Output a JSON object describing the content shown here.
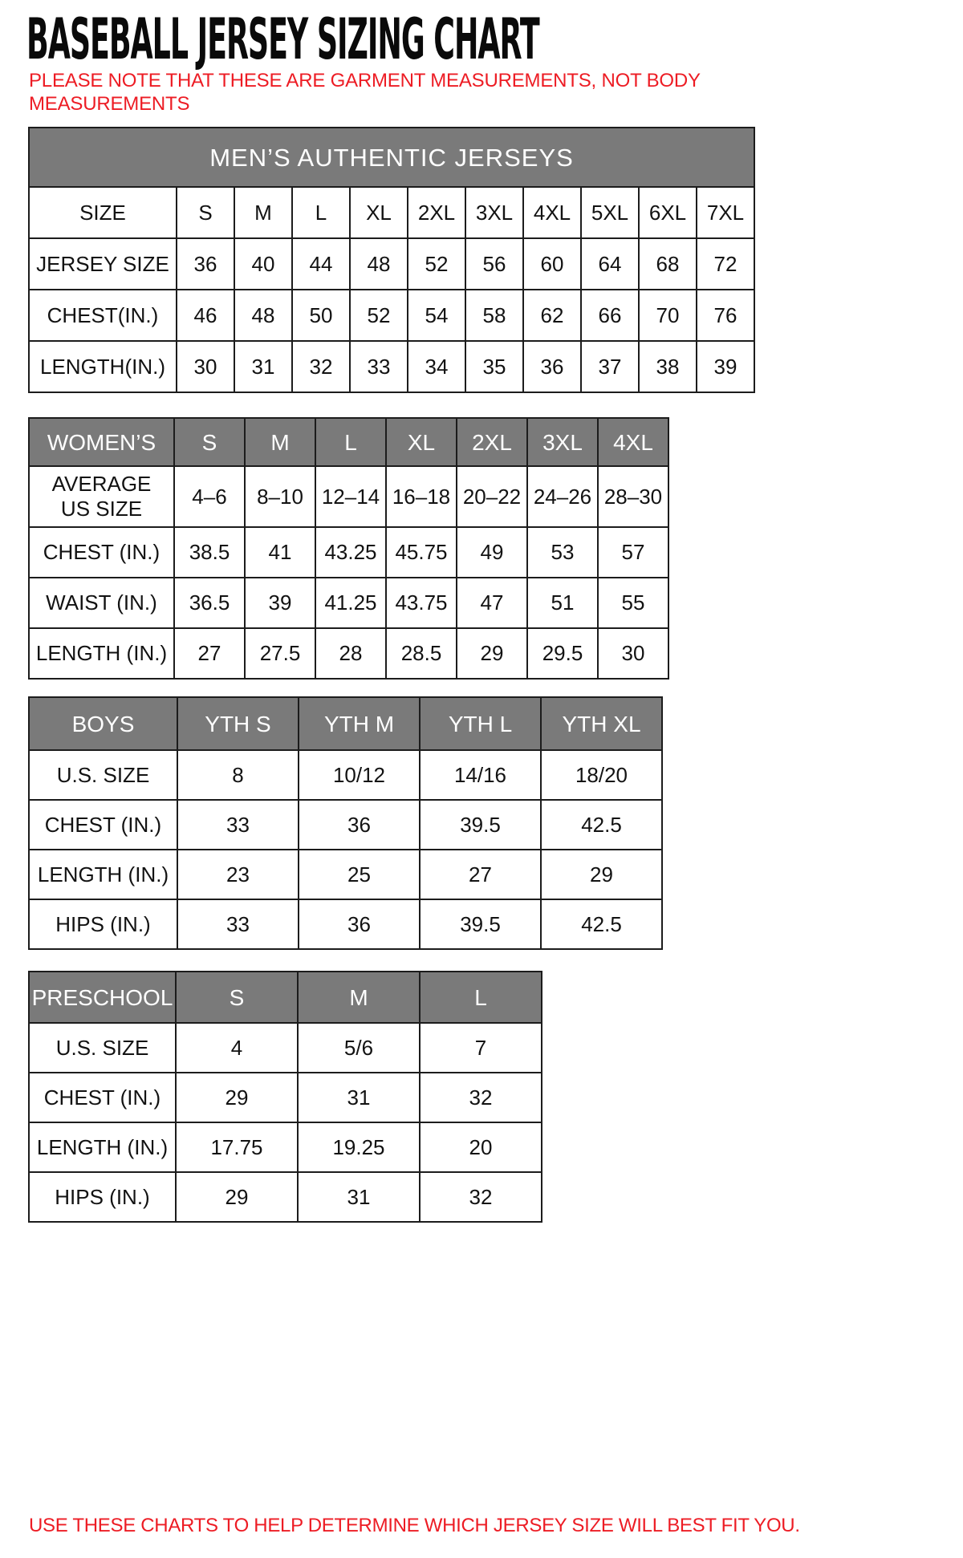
{
  "page": {
    "title": "BASEBALL JERSEY SIZING CHART",
    "note": "PLEASE NOTE THAT THESE ARE GARMENT MEASUREMENTS, NOT BODY\nMEASUREMENTS",
    "footer": "USE THESE CHARTS TO HELP DETERMINE WHICH JERSEY SIZE WILL BEST FIT YOU.",
    "colors": {
      "accent_red": "#ed1c24",
      "header_gray": "#7a7a7a",
      "border_black": "#1c1c1c",
      "text_black": "#121212"
    }
  },
  "tables": {
    "mens": {
      "title": "MEN’S AUTHENTIC JERSEYS",
      "rows": [
        {
          "label": "SIZE",
          "values": [
            "S",
            "M",
            "L",
            "XL",
            "2XL",
            "3XL",
            "4XL",
            "5XL",
            "6XL",
            "7XL"
          ]
        },
        {
          "label": "JERSEY SIZE",
          "values": [
            "36",
            "40",
            "44",
            "48",
            "52",
            "56",
            "60",
            "64",
            "68",
            "72"
          ]
        },
        {
          "label": "CHEST(IN.)",
          "values": [
            "46",
            "48",
            "50",
            "52",
            "54",
            "58",
            "62",
            "66",
            "70",
            "76"
          ]
        },
        {
          "label": "LENGTH(IN.)",
          "values": [
            "30",
            "31",
            "32",
            "33",
            "34",
            "35",
            "36",
            "37",
            "38",
            "39"
          ]
        }
      ]
    },
    "womens": {
      "header": {
        "label": "WOMEN’S",
        "values": [
          "S",
          "M",
          "L",
          "XL",
          "2XL",
          "3XL",
          "4XL"
        ]
      },
      "rows": [
        {
          "label": "AVERAGE\nUS SIZE",
          "values": [
            "4–6",
            "8–10",
            "12–14",
            "16–18",
            "20–22",
            "24–26",
            "28–30"
          ]
        },
        {
          "label": "CHEST (IN.)",
          "values": [
            "38.5",
            "41",
            "43.25",
            "45.75",
            "49",
            "53",
            "57"
          ]
        },
        {
          "label": "WAIST (IN.)",
          "values": [
            "36.5",
            "39",
            "41.25",
            "43.75",
            "47",
            "51",
            "55"
          ]
        },
        {
          "label": "LENGTH (IN.)",
          "values": [
            "27",
            "27.5",
            "28",
            "28.5",
            "29",
            "29.5",
            "30"
          ]
        }
      ]
    },
    "boys": {
      "header": {
        "label": "BOYS",
        "values": [
          "YTH S",
          "YTH M",
          "YTH L",
          "YTH XL"
        ]
      },
      "rows": [
        {
          "label": "U.S. SIZE",
          "values": [
            "8",
            "10/12",
            "14/16",
            "18/20"
          ]
        },
        {
          "label": "CHEST (IN.)",
          "values": [
            "33",
            "36",
            "39.5",
            "42.5"
          ]
        },
        {
          "label": "LENGTH (IN.)",
          "values": [
            "23",
            "25",
            "27",
            "29"
          ]
        },
        {
          "label": "HIPS (IN.)",
          "values": [
            "33",
            "36",
            "39.5",
            "42.5"
          ]
        }
      ]
    },
    "preschool": {
      "header": {
        "label": "PRESCHOOL",
        "values": [
          "S",
          "M",
          "L"
        ]
      },
      "rows": [
        {
          "label": "U.S. SIZE",
          "values": [
            "4",
            "5/6",
            "7"
          ]
        },
        {
          "label": "CHEST (IN.)",
          "values": [
            "29",
            "31",
            "32"
          ]
        },
        {
          "label": "LENGTH (IN.)",
          "values": [
            "17.75",
            "19.25",
            "20"
          ]
        },
        {
          "label": "HIPS (IN.)",
          "values": [
            "29",
            "31",
            "32"
          ]
        }
      ]
    }
  }
}
